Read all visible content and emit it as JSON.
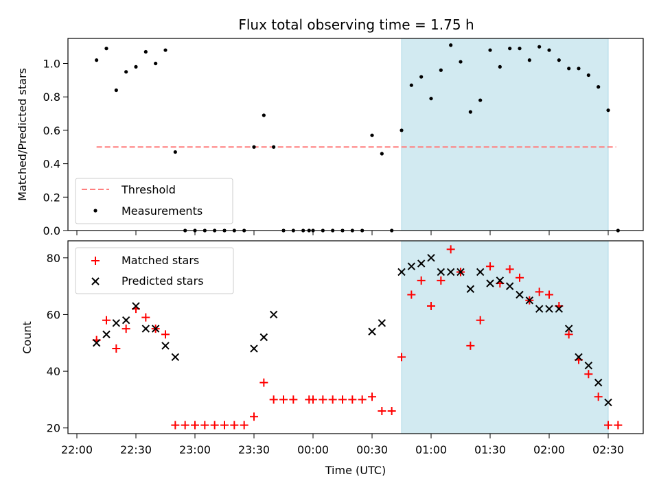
{
  "chart_data": [
    {
      "type": "scatter",
      "title": "Flux total observing time = 1.75 h",
      "xlabel": "",
      "ylabel": "Matched/Predicted stars",
      "ylim": [
        0,
        1.15
      ],
      "yticks": [
        0.0,
        0.2,
        0.4,
        0.6,
        0.8,
        1.0
      ],
      "yticklabels": [
        "0.0",
        "0.2",
        "0.4",
        "0.6",
        "0.8",
        "1.0"
      ],
      "legend_position": "lower-left",
      "highlight_span": {
        "x": [
          "00:45",
          "02:30"
        ],
        "color": "#add8e6"
      },
      "threshold": {
        "name": "Threshold",
        "value": 0.5,
        "x": [
          "22:10",
          "02:34"
        ],
        "color": "#ff7f7f",
        "style": "dashed"
      },
      "series": [
        {
          "name": "Measurements",
          "color": "#000000",
          "marker": "dot",
          "x": [
            "22:10",
            "22:15",
            "22:20",
            "22:25",
            "22:30",
            "22:35",
            "22:40",
            "22:45",
            "22:50",
            "22:55",
            "23:00",
            "23:05",
            "23:10",
            "23:15",
            "23:20",
            "23:25",
            "23:30",
            "23:35",
            "23:40",
            "23:45",
            "23:50",
            "23:55",
            "23:58",
            "00:00",
            "00:05",
            "00:10",
            "00:15",
            "00:20",
            "00:25",
            "00:30",
            "00:35",
            "00:40",
            "00:45",
            "00:50",
            "00:55",
            "01:00",
            "01:05",
            "01:10",
            "01:15",
            "01:20",
            "01:25",
            "01:30",
            "01:35",
            "01:40",
            "01:45",
            "01:50",
            "01:55",
            "02:00",
            "02:05",
            "02:10",
            "02:15",
            "02:20",
            "02:25",
            "02:30",
            "02:35"
          ],
          "y": [
            1.02,
            1.09,
            0.84,
            0.95,
            0.98,
            1.07,
            1.0,
            1.08,
            0.47,
            0,
            0,
            0,
            0,
            0,
            0,
            0,
            0.5,
            0.69,
            0.5,
            0,
            0,
            0,
            0,
            0,
            0,
            0,
            0,
            0,
            0,
            0.57,
            0.46,
            0,
            0.6,
            0.87,
            0.92,
            0.79,
            0.96,
            1.11,
            1.01,
            0.71,
            0.78,
            1.08,
            0.98,
            1.09,
            1.09,
            1.02,
            1.1,
            1.08,
            1.02,
            0.97,
            0.97,
            0.93,
            0.86,
            0.72,
            0
          ]
        }
      ],
      "xticks": [
        "22:00",
        "22:30",
        "23:00",
        "23:30",
        "00:00",
        "00:30",
        "01:00",
        "01:30",
        "02:00",
        "02:30"
      ],
      "show_xticklabels": false
    },
    {
      "type": "scatter",
      "title": "",
      "xlabel": "Time (UTC)",
      "ylabel": "Count",
      "ylim": [
        18,
        86
      ],
      "yticks": [
        20,
        40,
        60,
        80
      ],
      "yticklabels": [
        "20",
        "40",
        "60",
        "80"
      ],
      "legend_position": "top-left",
      "highlight_span": {
        "x": [
          "00:45",
          "02:30"
        ],
        "color": "#add8e6"
      },
      "xticks": [
        "22:00",
        "22:30",
        "23:00",
        "23:30",
        "00:00",
        "00:30",
        "01:00",
        "01:30",
        "02:00",
        "02:30"
      ],
      "xticklabels": [
        "22:00",
        "22:30",
        "23:00",
        "23:30",
        "00:00",
        "00:30",
        "01:00",
        "01:30",
        "02:00",
        "02:30"
      ],
      "show_xticklabels": true,
      "series": [
        {
          "name": "Matched stars",
          "color": "#ff0000",
          "marker": "plus",
          "x": [
            "22:10",
            "22:15",
            "22:20",
            "22:25",
            "22:30",
            "22:35",
            "22:40",
            "22:45",
            "22:50",
            "22:55",
            "23:00",
            "23:05",
            "23:10",
            "23:15",
            "23:20",
            "23:25",
            "23:30",
            "23:35",
            "23:40",
            "23:45",
            "23:50",
            "23:58",
            "00:00",
            "00:05",
            "00:10",
            "00:15",
            "00:20",
            "00:25",
            "00:30",
            "00:35",
            "00:40",
            "00:45",
            "00:50",
            "00:55",
            "01:00",
            "01:05",
            "01:10",
            "01:15",
            "01:20",
            "01:25",
            "01:30",
            "01:35",
            "01:40",
            "01:45",
            "01:50",
            "01:55",
            "02:00",
            "02:05",
            "02:10",
            "02:15",
            "02:20",
            "02:25",
            "02:30",
            "02:35"
          ],
          "y": [
            51,
            58,
            48,
            55,
            62,
            59,
            55,
            53,
            21,
            21,
            21,
            21,
            21,
            21,
            21,
            21,
            24,
            36,
            30,
            30,
            30,
            30,
            30,
            30,
            30,
            30,
            30,
            30,
            31,
            26,
            26,
            45,
            67,
            72,
            63,
            72,
            83,
            75,
            49,
            58,
            77,
            71,
            76,
            73,
            65,
            68,
            67,
            63,
            53,
            44,
            39,
            31,
            21,
            21
          ]
        },
        {
          "name": "Predicted stars",
          "color": "#000000",
          "marker": "x",
          "x": [
            "22:10",
            "22:15",
            "22:20",
            "22:25",
            "22:30",
            "22:35",
            "22:40",
            "22:45",
            "22:50",
            "23:30",
            "23:35",
            "23:40",
            "00:30",
            "00:35",
            "00:45",
            "00:50",
            "00:55",
            "01:00",
            "01:05",
            "01:10",
            "01:15",
            "01:20",
            "01:25",
            "01:30",
            "01:35",
            "01:40",
            "01:45",
            "01:50",
            "01:55",
            "02:00",
            "02:05",
            "02:10",
            "02:15",
            "02:20",
            "02:25",
            "02:30"
          ],
          "y": [
            50,
            53,
            57,
            58,
            63,
            55,
            55,
            49,
            45,
            48,
            52,
            60,
            54,
            57,
            75,
            77,
            78,
            80,
            75,
            75,
            75,
            69,
            75,
            71,
            72,
            70,
            67,
            65,
            62,
            62,
            62,
            55,
            45,
            42,
            36,
            29
          ]
        }
      ]
    }
  ]
}
